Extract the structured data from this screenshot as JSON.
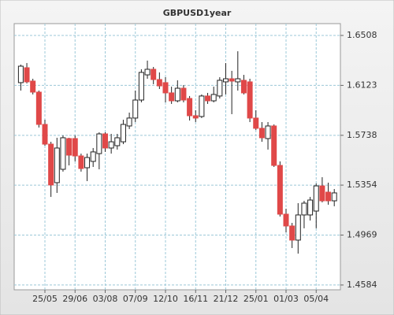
{
  "chart_data": {
    "type": "candlestick",
    "title": "GBPUSD1year",
    "categories": [
      null,
      null,
      null,
      null,
      "25/05",
      null,
      null,
      null,
      null,
      "29/06",
      null,
      null,
      null,
      null,
      "03/08",
      null,
      null,
      null,
      null,
      "07/09",
      null,
      null,
      null,
      null,
      "12/10",
      null,
      null,
      null,
      null,
      "16/11",
      null,
      null,
      null,
      null,
      "21/12",
      null,
      null,
      null,
      null,
      "25/01",
      null,
      null,
      null,
      null,
      "01/03",
      null,
      null,
      null,
      null,
      "05/04",
      null,
      null,
      null
    ],
    "open": [
      1.6144,
      1.6259,
      1.6156,
      1.6071,
      1.5822,
      1.567,
      1.5373,
      1.5476,
      1.5713,
      1.5713,
      1.5579,
      1.5488,
      1.5537,
      1.5597,
      1.5749,
      1.564,
      1.5658,
      1.5688,
      1.581,
      1.5871,
      1.601,
      1.6204,
      1.6247,
      1.6168,
      1.6144,
      1.6065,
      1.6004,
      1.6101,
      1.6022,
      1.5889,
      1.5883,
      1.6041,
      1.6004,
      1.6041,
      1.615,
      1.6174,
      1.615,
      1.6162,
      1.615,
      1.5871,
      1.5792,
      1.5713,
      1.581,
      1.5506,
      1.513,
      1.5039,
      1.493,
      1.5124,
      1.5124,
      1.5154,
      1.5348,
      1.53,
      1.5233
    ],
    "high": [
      1.6283,
      1.6295,
      1.6174,
      1.6083,
      1.5858,
      1.5688,
      1.5719,
      1.5737,
      1.5719,
      1.5737,
      1.5597,
      1.5597,
      1.564,
      1.5761,
      1.5761,
      1.5749,
      1.5749,
      1.5858,
      1.5913,
      1.6083,
      1.6247,
      1.6314,
      1.6265,
      1.6223,
      1.6186,
      1.6113,
      1.6162,
      1.6125,
      1.6041,
      1.5931,
      1.6053,
      1.6065,
      1.6113,
      1.6186,
      1.6295,
      1.6235,
      1.6386,
      1.6204,
      1.6174,
      1.5931,
      1.584,
      1.584,
      1.5822,
      1.5537,
      1.5172,
      1.5063,
      1.5215,
      1.5233,
      1.5263,
      1.5367,
      1.5415,
      1.5373,
      1.5324
    ],
    "low": [
      1.6083,
      1.6138,
      1.6053,
      1.5798,
      1.5658,
      1.5263,
      1.5294,
      1.5458,
      1.5506,
      1.5537,
      1.5458,
      1.5385,
      1.5494,
      1.5476,
      1.561,
      1.5597,
      1.5628,
      1.567,
      1.5786,
      1.584,
      1.5992,
      1.6174,
      1.6132,
      1.6095,
      1.5992,
      1.598,
      1.5992,
      1.5992,
      1.5852,
      1.584,
      1.5871,
      1.598,
      1.5992,
      1.6022,
      1.6053,
      1.5901,
      1.6083,
      1.6053,
      1.584,
      1.5779,
      1.5688,
      1.5628,
      1.5494,
      1.5112,
      1.499,
      1.4869,
      1.4826,
      1.5021,
      1.5081,
      1.5021,
      1.5221,
      1.5203,
      1.5191
    ],
    "close": [
      1.6271,
      1.615,
      1.6071,
      1.5822,
      1.567,
      1.5355,
      1.564,
      1.5719,
      1.5585,
      1.5579,
      1.5482,
      1.5567,
      1.561,
      1.5749,
      1.564,
      1.5688,
      1.5719,
      1.5822,
      1.5871,
      1.601,
      1.6223,
      1.6247,
      1.6168,
      1.6119,
      1.6065,
      1.6004,
      1.6101,
      1.601,
      1.5889,
      1.5871,
      1.6041,
      1.6004,
      1.6053,
      1.6162,
      1.6174,
      1.6156,
      1.6174,
      1.6065,
      1.5871,
      1.5792,
      1.5719,
      1.581,
      1.5506,
      1.513,
      1.5039,
      1.493,
      1.5124,
      1.5215,
      1.5239,
      1.5348,
      1.5233,
      1.5233,
      1.5294
    ],
    "up_color": "#ffffff",
    "down_color": "#e04848",
    "ylim": [
      1.4547,
      1.6599
    ],
    "yticks": [
      1.4584,
      1.4969,
      1.5354,
      1.5738,
      1.6123,
      1.6508
    ],
    "grid": true
  }
}
